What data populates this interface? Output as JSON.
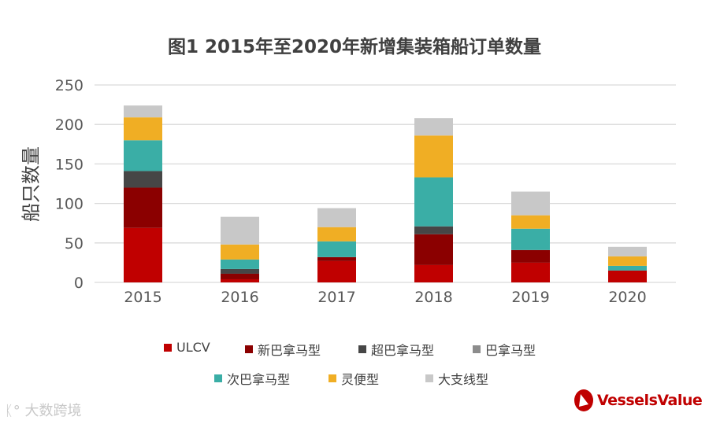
{
  "chart_data": {
    "type": "bar",
    "stacked": true,
    "title": "图1 2015年至2020年新增集装箱船订单数量",
    "xlabel": "",
    "ylabel": "船只数量",
    "ylim": [
      0,
      250
    ],
    "yticks": [
      "0",
      "50",
      "100",
      "150",
      "200",
      "250"
    ],
    "grid": true,
    "legend_position": "bottom",
    "categories": [
      "2015",
      "2016",
      "2017",
      "2018",
      "2019",
      "2020"
    ],
    "series": [
      {
        "name": "ULCV",
        "color": "#c00000",
        "values": [
          69,
          4,
          27,
          22,
          25,
          15
        ]
      },
      {
        "name": "新巴拿马型",
        "color": "#8b0000",
        "values": [
          51,
          7,
          5,
          39,
          16,
          0
        ]
      },
      {
        "name": "超巴拿马型",
        "color": "#464646",
        "values": [
          21,
          6,
          0,
          10,
          0,
          0
        ]
      },
      {
        "name": "巴拿马型",
        "color": "#8c8c8c",
        "values": [
          0,
          0,
          0,
          0,
          0,
          0
        ]
      },
      {
        "name": "次巴拿马型",
        "color": "#3aaea6",
        "values": [
          39,
          12,
          20,
          62,
          27,
          6
        ]
      },
      {
        "name": "灵便型",
        "color": "#f0ae24",
        "values": [
          29,
          19,
          18,
          53,
          17,
          12
        ]
      },
      {
        "name": "大支线型",
        "color": "#c8c8c8",
        "values": [
          15,
          35,
          24,
          22,
          30,
          12
        ]
      }
    ]
  },
  "watermark": "大数跨境",
  "logo": "VesselsValue"
}
